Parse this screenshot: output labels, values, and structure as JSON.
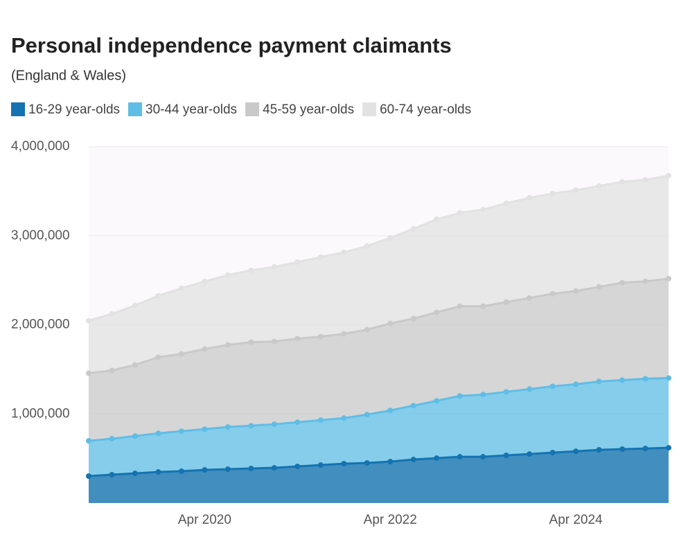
{
  "chart_data": {
    "type": "stacked-area",
    "title": "Personal independence payment claimants",
    "subtitle": "(England & Wales)",
    "categories": [
      null,
      null,
      null,
      null,
      null,
      "Apr 2020",
      null,
      null,
      null,
      null,
      null,
      null,
      null,
      "Apr 2022",
      null,
      null,
      null,
      null,
      null,
      null,
      null,
      "Apr 2024",
      null,
      null,
      null,
      null
    ],
    "series": [
      {
        "name": "16-29 year-olds",
        "color": "#1473b0",
        "values": [
          302000,
          318000,
          333000,
          349000,
          357000,
          372000,
          380000,
          388000,
          395000,
          411000,
          426000,
          442000,
          450000,
          465000,
          488000,
          504000,
          519000,
          519000,
          535000,
          550000,
          566000,
          581000,
          597000,
          605000,
          612000,
          620000
        ]
      },
      {
        "name": "30-44 year-olds",
        "color": "#5fbde6",
        "values": [
          396000,
          403000,
          419000,
          434000,
          449000,
          457000,
          473000,
          480000,
          489000,
          496000,
          504000,
          511000,
          542000,
          574000,
          605000,
          643000,
          683000,
          698000,
          713000,
          729000,
          744000,
          752000,
          767000,
          775000,
          783000,
          783000
        ]
      },
      {
        "name": "45-59 year-olds",
        "color": "#c9c9c9",
        "values": [
          759000,
          767000,
          798000,
          853000,
          868000,
          900000,
          922000,
          938000,
          930000,
          938000,
          938000,
          946000,
          954000,
          977000,
          977000,
          993000,
          1007000,
          992000,
          1008000,
          1023000,
          1039000,
          1047000,
          1062000,
          1093000,
          1093000,
          1116000
        ]
      },
      {
        "name": "60-74 year-olds",
        "color": "#e2e2e2",
        "values": [
          590000,
          636000,
          667000,
          690000,
          737000,
          759000,
          783000,
          806000,
          837000,
          860000,
          892000,
          915000,
          938000,
          961000,
          1008000,
          1046000,
          1047000,
          1086000,
          1108000,
          1124000,
          1124000,
          1132000,
          1132000,
          1132000,
          1140000,
          1155000
        ]
      }
    ],
    "ylim": [
      0,
      4000000
    ],
    "yticks": [
      {
        "value": 1000000,
        "label": "1,000,000"
      },
      {
        "value": 2000000,
        "label": "2,000,000"
      },
      {
        "value": 3000000,
        "label": "3,000,000"
      },
      {
        "value": 4000000,
        "label": "4,000,000"
      }
    ],
    "grid": true
  }
}
